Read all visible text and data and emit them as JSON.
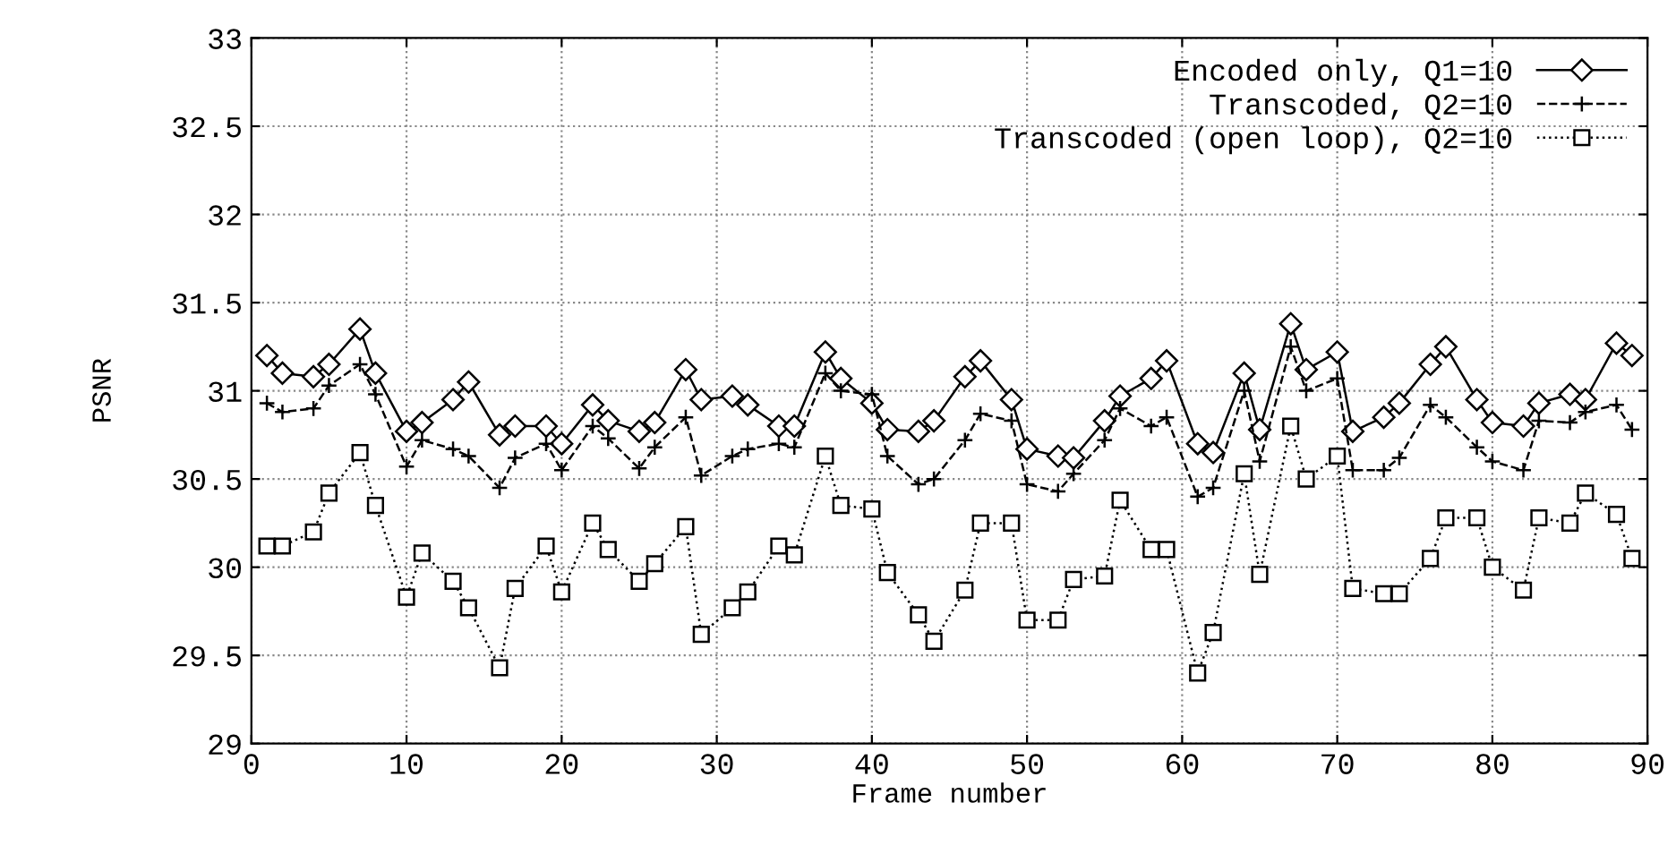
{
  "chart_data": {
    "type": "line",
    "xlabel": "Frame number",
    "ylabel": "PSNR",
    "x": [
      1,
      2,
      4,
      5,
      7,
      8,
      10,
      11,
      13,
      14,
      16,
      17,
      19,
      20,
      22,
      23,
      25,
      26,
      28,
      29,
      31,
      32,
      34,
      35,
      37,
      38,
      40,
      41,
      43,
      44,
      46,
      47,
      49,
      50,
      52,
      53,
      55,
      56,
      58,
      59,
      61,
      62,
      64,
      65,
      67,
      68,
      70,
      71,
      73,
      74,
      76,
      77,
      79,
      80,
      82,
      83,
      85,
      86,
      88,
      89
    ],
    "series": [
      {
        "name": "Encoded only, Q1=10",
        "color": "#000000",
        "marker": "diamond",
        "line_style": "solid",
        "values": [
          31.2,
          31.1,
          31.08,
          31.15,
          31.35,
          31.1,
          30.77,
          30.82,
          30.95,
          31.05,
          30.75,
          30.8,
          30.8,
          30.7,
          30.92,
          30.83,
          30.77,
          30.82,
          31.12,
          30.95,
          30.97,
          30.92,
          30.8,
          30.8,
          31.22,
          31.07,
          30.93,
          30.78,
          30.77,
          30.83,
          31.08,
          31.17,
          30.95,
          30.67,
          30.63,
          30.62,
          30.83,
          30.97,
          31.07,
          31.17,
          30.7,
          30.65,
          31.1,
          30.78,
          31.38,
          31.12,
          31.22,
          30.77,
          30.85,
          30.93,
          31.15,
          31.25,
          30.95,
          30.82,
          30.8,
          30.93,
          30.98,
          30.95,
          31.27,
          31.2
        ]
      },
      {
        "name": "Transcoded, Q2=10",
        "color": "#000000",
        "marker": "cross",
        "line_style": "dashed",
        "values": [
          30.93,
          30.88,
          30.9,
          31.03,
          31.15,
          30.98,
          30.57,
          30.72,
          30.67,
          30.63,
          30.45,
          30.62,
          30.7,
          30.55,
          30.8,
          30.73,
          30.56,
          30.68,
          30.85,
          30.52,
          30.63,
          30.67,
          30.7,
          30.68,
          31.1,
          31.0,
          30.98,
          30.63,
          30.47,
          30.5,
          30.72,
          30.87,
          30.83,
          30.47,
          30.43,
          30.53,
          30.72,
          30.9,
          30.8,
          30.85,
          30.4,
          30.45,
          31.0,
          30.6,
          31.25,
          31.0,
          31.07,
          30.55,
          30.55,
          30.62,
          30.92,
          30.85,
          30.68,
          30.6,
          30.55,
          30.83,
          30.82,
          30.88,
          30.92,
          30.78
        ]
      },
      {
        "name": "Transcoded (open loop), Q2=10",
        "color": "#000000",
        "marker": "square",
        "line_style": "dotted",
        "values": [
          30.12,
          30.12,
          30.2,
          30.42,
          30.65,
          30.35,
          29.83,
          30.08,
          29.92,
          29.77,
          29.43,
          29.88,
          30.12,
          29.86,
          30.25,
          30.1,
          29.92,
          30.02,
          30.23,
          29.62,
          29.77,
          29.86,
          30.12,
          30.07,
          30.63,
          30.35,
          30.33,
          29.97,
          29.73,
          29.58,
          29.87,
          30.25,
          30.25,
          29.7,
          29.7,
          29.93,
          29.95,
          30.38,
          30.1,
          30.1,
          29.4,
          29.63,
          30.53,
          29.96,
          30.8,
          30.5,
          30.63,
          29.88,
          29.85,
          29.85,
          30.05,
          30.28,
          30.28,
          30.0,
          29.87,
          30.28,
          30.25,
          30.42,
          30.3,
          30.05
        ]
      }
    ],
    "xlim": [
      0,
      90
    ],
    "xticks": [
      0,
      10,
      20,
      30,
      40,
      50,
      60,
      70,
      80,
      90
    ],
    "ylim": [
      29,
      33
    ],
    "yticks": [
      29,
      29.5,
      30,
      30.5,
      31,
      31.5,
      32,
      32.5,
      33
    ],
    "grid": true,
    "legend": "top right"
  }
}
